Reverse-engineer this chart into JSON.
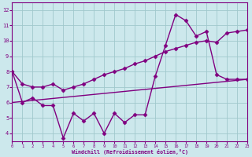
{
  "line1_x": [
    0,
    1,
    2,
    3,
    4,
    5,
    6,
    7,
    8,
    9,
    10,
    11,
    12,
    13,
    14,
    15,
    16,
    17,
    18,
    19,
    20,
    21,
    22,
    23
  ],
  "line1_y": [
    8.0,
    6.0,
    6.3,
    5.8,
    5.8,
    3.7,
    5.3,
    4.8,
    5.3,
    4.0,
    5.3,
    4.7,
    5.2,
    5.2,
    7.7,
    9.7,
    11.7,
    11.3,
    10.3,
    10.6,
    7.8,
    7.5,
    7.5,
    7.5
  ],
  "line2_x": [
    0,
    23
  ],
  "line2_y": [
    6.0,
    7.5
  ],
  "line3_x": [
    0,
    1,
    2,
    3,
    4,
    5,
    6,
    7,
    8,
    9,
    10,
    11,
    12,
    13,
    14,
    15,
    16,
    17,
    18,
    19,
    20,
    21,
    22,
    23
  ],
  "line3_y": [
    8.0,
    7.2,
    7.0,
    7.0,
    7.2,
    6.8,
    7.0,
    7.2,
    7.5,
    7.8,
    8.0,
    8.2,
    8.5,
    8.7,
    9.0,
    9.3,
    9.5,
    9.7,
    9.9,
    10.0,
    9.9,
    10.5,
    10.6,
    10.7
  ],
  "line_color": "#800080",
  "bg_color": "#cce8ec",
  "grid_color": "#a0c8cc",
  "xlabel": "Windchill (Refroidissement éolien,°C)",
  "xlim": [
    0,
    23
  ],
  "ylim": [
    3.5,
    12.5
  ],
  "yticks": [
    4,
    5,
    6,
    7,
    8,
    9,
    10,
    11,
    12
  ],
  "xticks": [
    0,
    1,
    2,
    3,
    4,
    5,
    6,
    7,
    8,
    9,
    10,
    11,
    12,
    13,
    14,
    15,
    16,
    17,
    18,
    19,
    20,
    21,
    22,
    23
  ],
  "marker": "D",
  "marker_size": 2.5,
  "linewidth": 1.0
}
